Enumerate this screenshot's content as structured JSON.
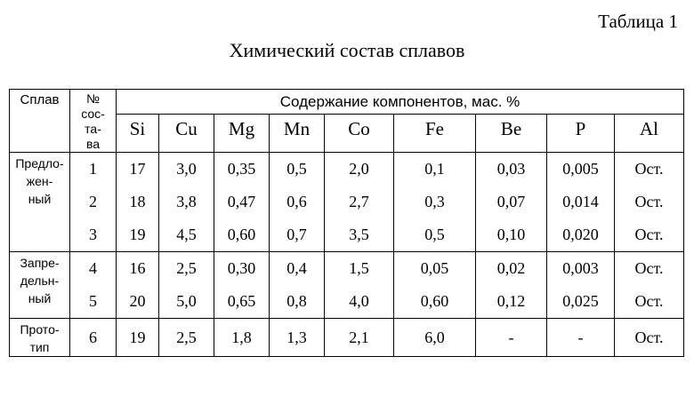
{
  "caption": "Таблица 1",
  "title": "Химический состав сплавов",
  "table": {
    "col_alloy": "Сплав",
    "col_number": "№\nсос-\nта-\nва",
    "col_number_lines": [
      "№",
      "сос-",
      "та-",
      "ва"
    ],
    "group_header": "Содержание компонентов, мас. %",
    "components": [
      "Si",
      "Cu",
      "Mg",
      "Mn",
      "Co",
      "Fe",
      "Be",
      "P",
      "Al"
    ],
    "groups": [
      {
        "name_lines": [
          "Предло-",
          "жен-",
          "ный"
        ],
        "rows": [
          {
            "n": "1",
            "values": [
              "17",
              "3,0",
              "0,35",
              "0,5",
              "2,0",
              "0,1",
              "0,03",
              "0,005",
              "Ост."
            ]
          },
          {
            "n": "2",
            "values": [
              "18",
              "3,8",
              "0,47",
              "0,6",
              "2,7",
              "0,3",
              "0,07",
              "0,014",
              "Ост."
            ]
          },
          {
            "n": "3",
            "values": [
              "19",
              "4,5",
              "0,60",
              "0,7",
              "3,5",
              "0,5",
              "0,10",
              "0,020",
              "Ост."
            ]
          }
        ]
      },
      {
        "name_lines": [
          "Запре-",
          "дельн-",
          "ный"
        ],
        "rows": [
          {
            "n": "4",
            "values": [
              "16",
              "2,5",
              "0,30",
              "0,4",
              "1,5",
              "0,05",
              "0,02",
              "0,003",
              "Ост."
            ]
          },
          {
            "n": "5",
            "values": [
              "20",
              "5,0",
              "0,65",
              "0,8",
              "4,0",
              "0,60",
              "0,12",
              "0,025",
              "Ост."
            ]
          }
        ]
      },
      {
        "name_lines": [
          "Прото-",
          "тип"
        ],
        "rows": [
          {
            "n": "6",
            "values": [
              "19",
              "2,5",
              "1,8",
              "1,3",
              "2,1",
              "6,0",
              "-",
              "-",
              "Ост."
            ]
          }
        ]
      }
    ]
  }
}
